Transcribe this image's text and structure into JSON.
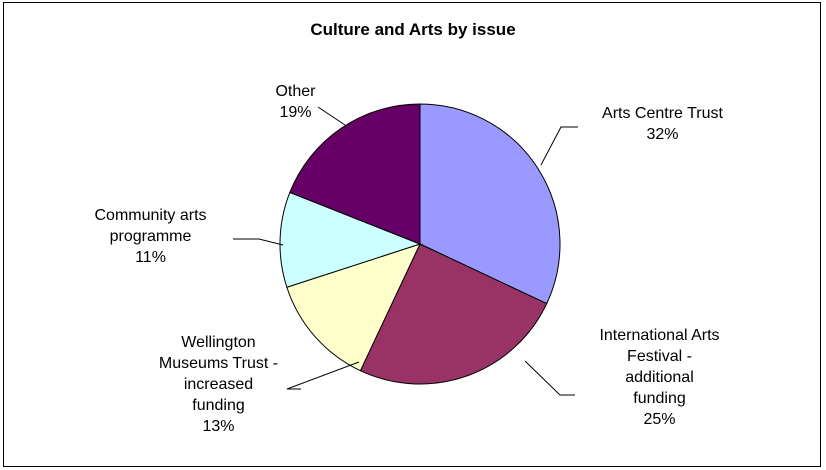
{
  "chart_data": {
    "type": "pie",
    "title": "Culture and Arts by issue",
    "slices": [
      {
        "name_lines": [
          "Arts Centre Trust"
        ],
        "pct_label": "32%",
        "value": 32,
        "color": "#9999ff"
      },
      {
        "name_lines": [
          "International Arts",
          "Festival -",
          "additional",
          "funding"
        ],
        "pct_label": "25%",
        "value": 25,
        "color": "#993366"
      },
      {
        "name_lines": [
          "Wellington",
          "Museums Trust -",
          "increased",
          "funding"
        ],
        "pct_label": "13%",
        "value": 13,
        "color": "#ffffcc"
      },
      {
        "name_lines": [
          "Community arts",
          "programme"
        ],
        "pct_label": "11%",
        "value": 11,
        "color": "#ccffff"
      },
      {
        "name_lines": [
          "Other"
        ],
        "pct_label": "19%",
        "value": 19,
        "color": "#660066"
      }
    ],
    "legend": "none"
  }
}
